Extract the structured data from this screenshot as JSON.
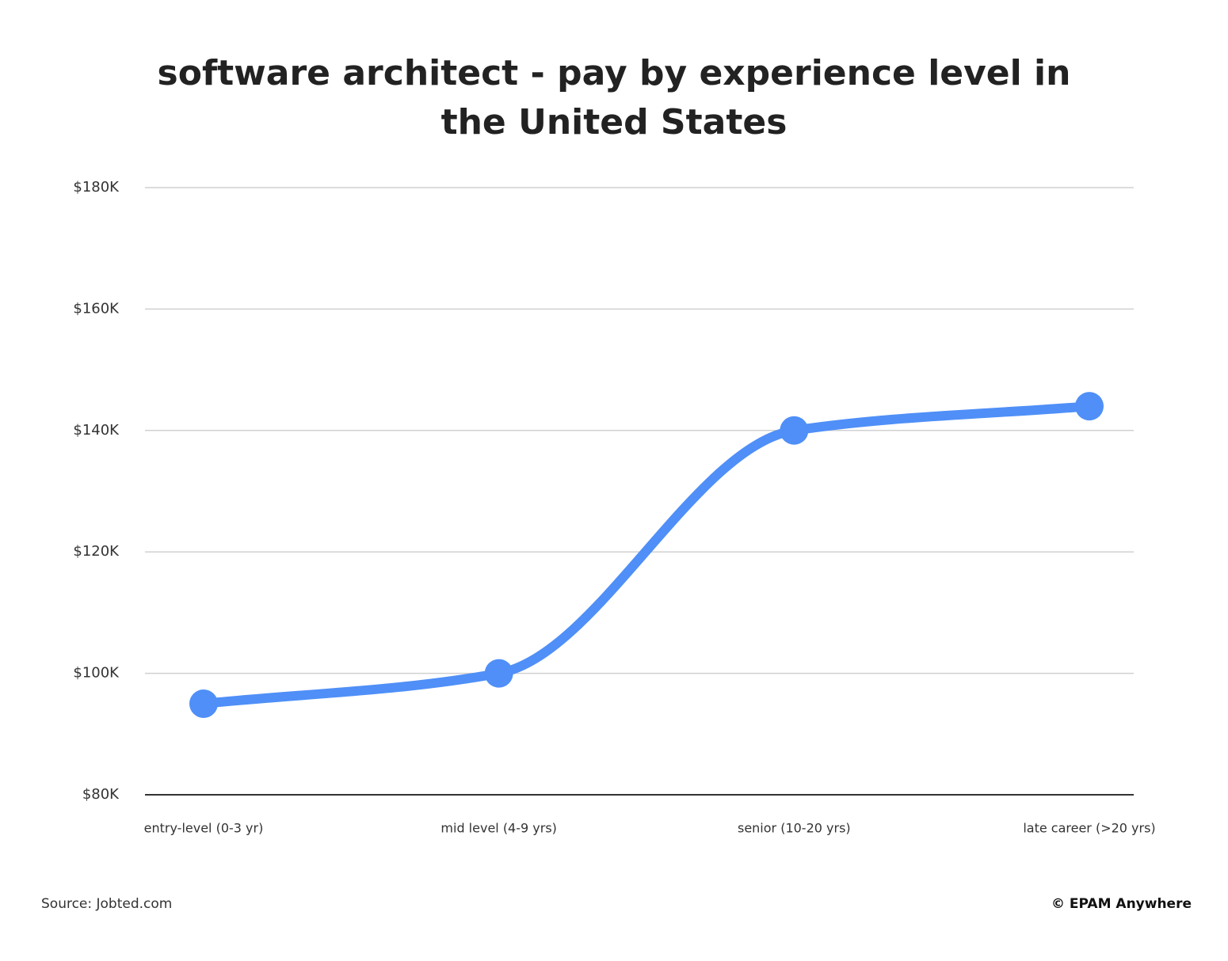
{
  "chart_data": {
    "type": "line",
    "title": "software architect - pay by experience level in the United States",
    "categories": [
      "entry-level (0-3 yr)",
      "mid level (4-9 yrs)",
      "senior (10-20 yrs)",
      "late career (>20 yrs)"
    ],
    "series": [
      {
        "color": "#4f8ff7",
        "values": [
          95000,
          100000,
          140000,
          144000
        ]
      }
    ],
    "ylim": [
      80000,
      180000
    ],
    "yticks": [
      {
        "value": 80000,
        "label": "$80K"
      },
      {
        "value": 100000,
        "label": "$100K"
      },
      {
        "value": 120000,
        "label": "$120K"
      },
      {
        "value": 140000,
        "label": "$140K"
      },
      {
        "value": 160000,
        "label": "$160K"
      },
      {
        "value": 180000,
        "label": "$180K"
      }
    ],
    "grid": true,
    "source": "Source: Jobted.com",
    "credit": "© EPAM Anywhere"
  }
}
